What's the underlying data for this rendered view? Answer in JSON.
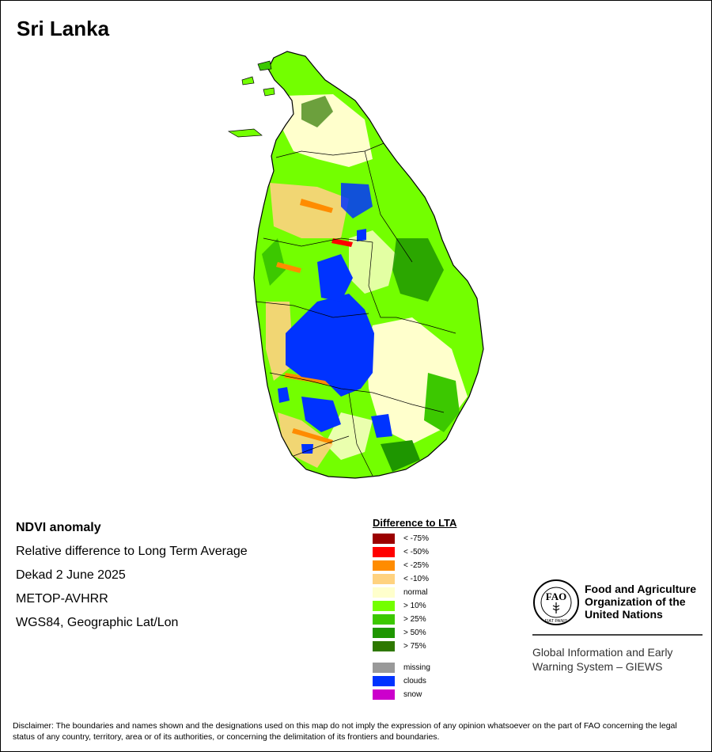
{
  "map": {
    "title": "Sri Lanka"
  },
  "info": {
    "title": "NDVI anomaly",
    "subtitle": "Relative difference to Long Term Average",
    "period": "Dekad 2 June 2025",
    "sensor": "METOP-AVHRR",
    "projection": "WGS84, Geographic Lat/Lon"
  },
  "legend": {
    "title": "Difference to LTA",
    "classes": [
      {
        "label": "< -75%",
        "color": "#9b0000"
      },
      {
        "label": "< -50%",
        "color": "#ff0000"
      },
      {
        "label": "< -25%",
        "color": "#ff8c00"
      },
      {
        "label": "< -10%",
        "color": "#ffd27f"
      },
      {
        "label": "normal",
        "color": "#ffffcc"
      },
      {
        "label": "> 10%",
        "color": "#73ff00"
      },
      {
        "label": "> 25%",
        "color": "#3cc800"
      },
      {
        "label": "> 50%",
        "color": "#1e9600"
      },
      {
        "label": "> 75%",
        "color": "#2e7800"
      }
    ],
    "extra": [
      {
        "label": "missing",
        "color": "#999999"
      },
      {
        "label": "clouds",
        "color": "#0033ff"
      },
      {
        "label": "snow",
        "color": "#cc00cc"
      }
    ]
  },
  "logo": {
    "fao_letters": "FAO",
    "fiat_panis": "FIAT PANIS",
    "organization_name": "Food and Agriculture Organization of the United Nations",
    "giews_name": "Global Information and Early Warning System – GIEWS"
  },
  "disclaimer": "Disclaimer: The boundaries and names shown and the designations used on this map do not imply the expression of any opinion whatsoever on the part of FAO concerning the legal status of any country, territory, area or of its authorities, or concerning the delimitation of its frontiers and boundaries."
}
